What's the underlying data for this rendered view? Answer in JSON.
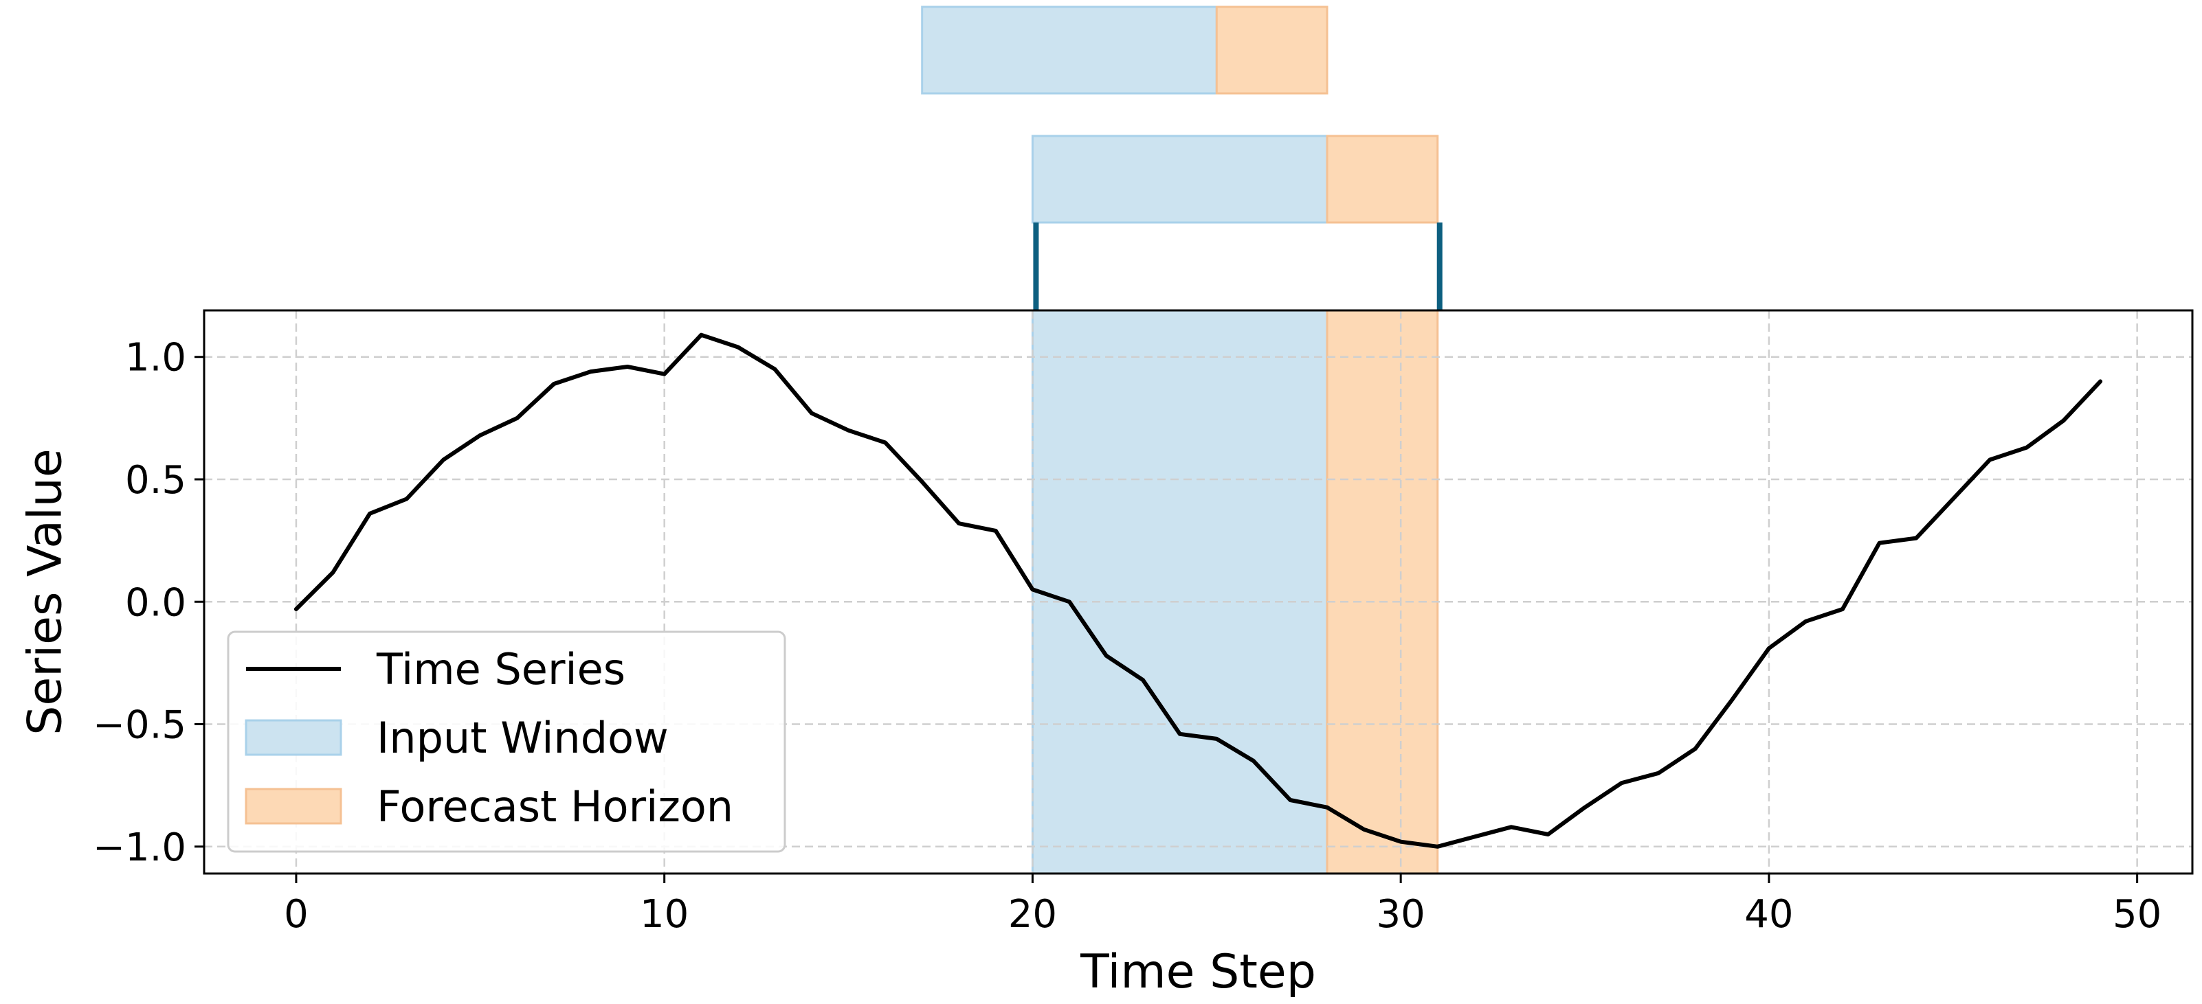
{
  "chart_data": {
    "type": "line",
    "title": "",
    "xlabel": "Time Step",
    "ylabel": "Series Value",
    "xlim": [
      -2.5,
      51.5
    ],
    "ylim": [
      -1.11,
      1.19
    ],
    "xticks": [
      0,
      10,
      20,
      30,
      40,
      50
    ],
    "xtick_labels": [
      "0",
      "10",
      "20",
      "30",
      "40",
      "50"
    ],
    "yticks": [
      1.0,
      0.5,
      0.0,
      -0.5,
      -1.0
    ],
    "ytick_labels": [
      "1.0",
      "0.5",
      "0.0",
      "−0.5",
      "−1.0"
    ],
    "grid": true,
    "legend_position": "lower-left",
    "legend": [
      "Time Series",
      "Input Window",
      "Forecast Horizon"
    ],
    "series": [
      {
        "name": "Time Series",
        "color": "#000000",
        "x": [
          0,
          1,
          2,
          3,
          4,
          5,
          6,
          7,
          8,
          9,
          10,
          11,
          12,
          13,
          14,
          15,
          16,
          17,
          18,
          19,
          20,
          21,
          22,
          23,
          24,
          25,
          26,
          27,
          28,
          29,
          30,
          31,
          32,
          33,
          34,
          35,
          36,
          37,
          38,
          39,
          40,
          41,
          42,
          43,
          44,
          45,
          46,
          47,
          48,
          49
        ],
        "values": [
          -0.03,
          0.12,
          0.36,
          0.42,
          0.58,
          0.68,
          0.75,
          0.89,
          0.94,
          0.96,
          0.93,
          1.09,
          1.04,
          0.95,
          0.77,
          0.7,
          0.65,
          0.49,
          0.32,
          0.29,
          0.05,
          0.0,
          -0.22,
          -0.32,
          -0.54,
          -0.56,
          -0.65,
          -0.81,
          -0.84,
          -0.93,
          -0.98,
          -1.0,
          -0.96,
          -0.92,
          -0.95,
          -0.84,
          -0.74,
          -0.7,
          -0.6,
          -0.4,
          -0.19,
          -0.08,
          -0.03,
          0.24,
          0.26,
          0.42,
          0.58,
          0.63,
          0.74,
          0.9
        ]
      }
    ],
    "regions": [
      {
        "name": "Input Window",
        "x_start": 20,
        "x_end": 28,
        "color": "#cce3f0",
        "edge": "#a9d1ea"
      },
      {
        "name": "Forecast Horizon",
        "x_start": 28,
        "x_end": 31,
        "color": "#fdd9b5",
        "edge": "#f5c193"
      }
    ],
    "sliding_windows": [
      {
        "input": [
          17,
          25
        ],
        "forecast": [
          25,
          28
        ]
      },
      {
        "input": [
          20,
          28
        ],
        "forecast": [
          28,
          31
        ]
      }
    ],
    "bracket": {
      "x_start": 20,
      "x_end": 31,
      "color": "#0d5f80"
    }
  }
}
